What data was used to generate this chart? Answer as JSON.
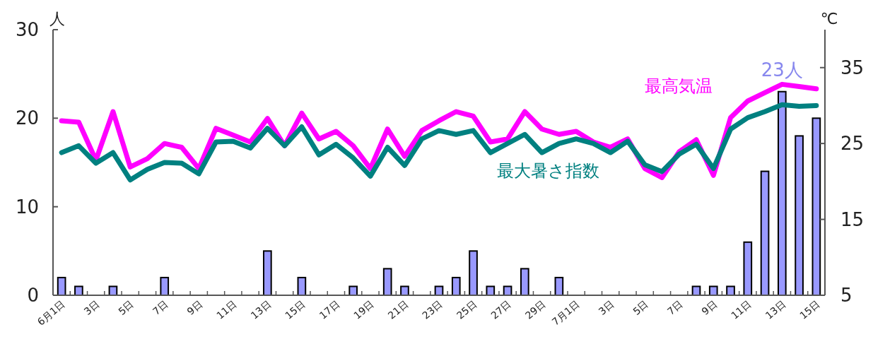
{
  "chart_data": {
    "type": "bar",
    "ylabel": "人",
    "y2label": "℃",
    "categories": [
      "6月1日",
      null,
      "3日",
      null,
      "5日",
      null,
      "7日",
      null,
      "9日",
      null,
      "11日",
      null,
      "13日",
      null,
      "15日",
      null,
      "17日",
      null,
      "19日",
      null,
      "21日",
      null,
      "23日",
      null,
      "25日",
      null,
      "27日",
      null,
      "29日",
      null,
      "7月1日",
      null,
      "3日",
      null,
      "5日",
      null,
      "7日",
      null,
      "9日",
      null,
      "11日",
      null,
      "13日",
      null,
      "15日"
    ],
    "ylim": [
      0,
      30
    ],
    "yticks": [
      0,
      10,
      20,
      30
    ],
    "y2lim": [
      5,
      40
    ],
    "y2ticks": [
      5,
      15,
      25,
      35
    ],
    "grid": false,
    "series": [
      {
        "color": "#9999ff",
        "values": [
          2,
          1,
          0,
          1,
          0,
          0,
          2,
          0,
          0,
          0,
          0,
          0,
          5,
          0,
          2,
          0,
          0,
          1,
          0,
          3,
          1,
          0,
          1,
          2,
          5,
          1,
          1,
          3,
          0,
          2,
          0,
          0,
          0,
          0,
          0,
          0,
          0,
          1,
          1,
          1,
          6,
          14,
          23,
          18,
          20
        ]
      },
      {
        "type": "line",
        "name": "最高気温",
        "color": "#ff00ff",
        "axis": "y2",
        "values": [
          28.0,
          27.8,
          22.8,
          29.2,
          21.9,
          23.0,
          25.0,
          24.5,
          21.7,
          27.0,
          26.1,
          25.2,
          28.3,
          24.7,
          29.0,
          25.6,
          26.6,
          24.7,
          21.7,
          26.9,
          23.3,
          26.7,
          28.0,
          29.2,
          28.6,
          25.2,
          25.6,
          29.2,
          26.9,
          26.2,
          26.6,
          25.2,
          24.5,
          25.6,
          21.7,
          20.5,
          23.9,
          25.5,
          20.8,
          28.4,
          30.6,
          31.7,
          32.8,
          32.5,
          32.2
        ]
      },
      {
        "type": "line",
        "name": "最大暑さ指数",
        "color": "#008080",
        "axis": "y2",
        "values": [
          23.8,
          24.7,
          22.4,
          23.8,
          20.2,
          21.6,
          22.5,
          22.4,
          21.0,
          25.2,
          25.3,
          24.4,
          27.0,
          24.7,
          27.2,
          23.5,
          24.9,
          23.1,
          20.7,
          24.5,
          22.1,
          25.6,
          26.7,
          26.2,
          26.7,
          23.8,
          25.0,
          26.2,
          23.8,
          25.0,
          25.6,
          25.0,
          23.8,
          25.3,
          22.2,
          21.3,
          23.6,
          24.9,
          21.7,
          26.9,
          28.4,
          29.2,
          30.1,
          29.9,
          30.0
        ]
      }
    ],
    "annotations": [
      "23人"
    ]
  }
}
